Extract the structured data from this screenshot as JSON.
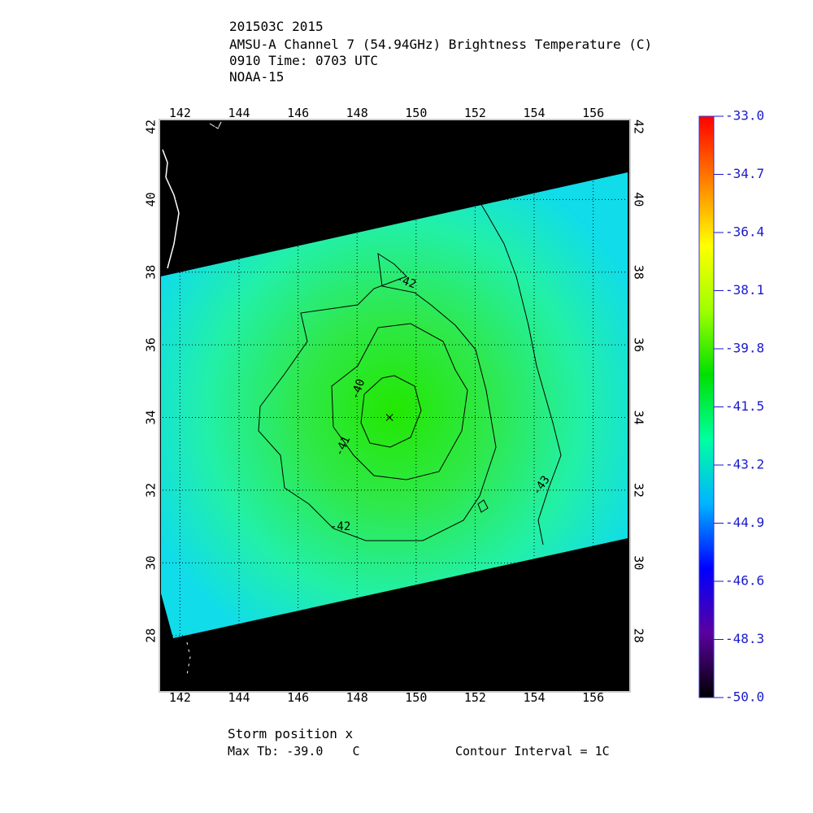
{
  "header": {
    "lines": [
      "201503C 2015",
      "AMSU-A Channel 7 (54.94GHz) Brightness Temperature (C)",
      "0910 Time: 0703 UTC",
      "NOAA-15"
    ]
  },
  "map": {
    "xlim": [
      141.3,
      157.25
    ],
    "ylim": [
      26.45,
      42.2
    ],
    "xticks": [
      142,
      144,
      146,
      148,
      150,
      152,
      154,
      156
    ],
    "yticks": [
      28,
      30,
      32,
      34,
      36,
      38,
      40,
      42
    ],
    "grid": true,
    "contour_labels": [
      -42,
      -40,
      -41,
      -42,
      -43
    ],
    "storm": {
      "lon": 149.1,
      "lat": 34.0
    }
  },
  "colorbar": {
    "ylim": [
      -50,
      -33
    ],
    "ticks": [
      {
        "value": -33,
        "label": "-33.0"
      },
      -34.7,
      -36.4,
      -38.1,
      -39.8,
      -41.5,
      -43.2,
      -44.9,
      -46.6,
      -48.3,
      {
        "value": -50,
        "label": "-50.0"
      }
    ],
    "colors": [
      "#000000",
      "#5a00a0",
      "#0000ff",
      "#00b4ff",
      "#00ffa0",
      "#00e000",
      "#a0ff00",
      "#ffff00",
      "#ff8000",
      "#ff0000"
    ]
  },
  "footer": {
    "storm_label": "Storm position x",
    "max_tb": "Max Tb: -39.0    C",
    "contour_interval": "Contour Interval = 1C"
  }
}
